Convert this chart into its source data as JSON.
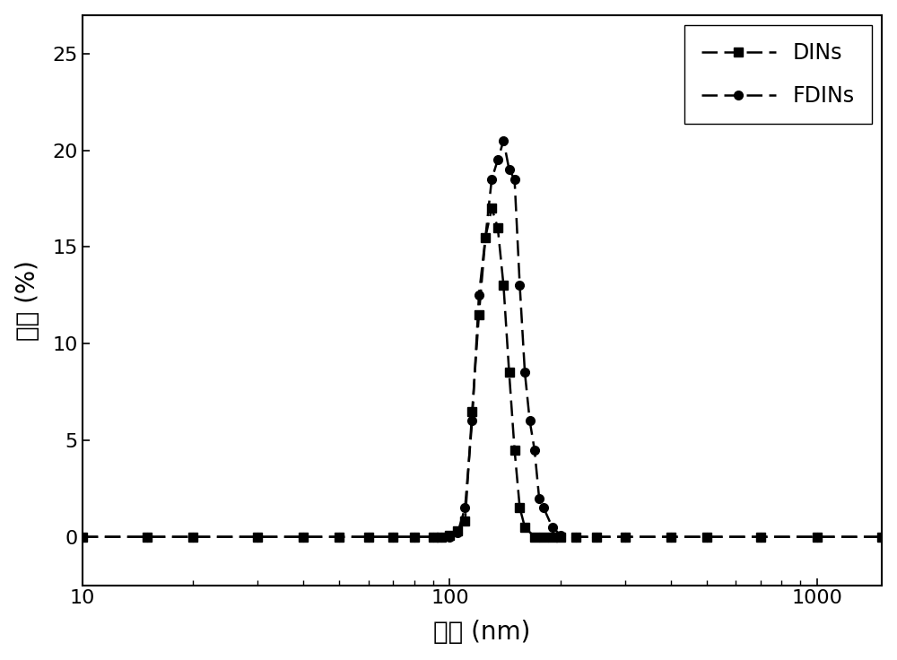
{
  "title": "",
  "xlabel": "粒径 (nm)",
  "ylabel": "强度 (%)",
  "xlim": [
    10,
    1500
  ],
  "ylim": [
    -2.5,
    27
  ],
  "yticks": [
    0,
    5,
    10,
    15,
    20,
    25
  ],
  "background_color": "#ffffff",
  "legend_labels": [
    "DINs",
    "FDINs"
  ],
  "DINs_x": [
    10,
    15,
    20,
    30,
    40,
    50,
    60,
    70,
    80,
    90,
    95,
    100,
    105,
    110,
    115,
    120,
    125,
    130,
    135,
    140,
    145,
    150,
    155,
    160,
    170,
    180,
    190,
    200,
    220,
    250,
    300,
    400,
    500,
    700,
    1000,
    1500
  ],
  "DINs_y": [
    0,
    0,
    0,
    0,
    0,
    0,
    0,
    0,
    0,
    0,
    0,
    0.1,
    0.3,
    0.8,
    6.5,
    11.5,
    15.5,
    17.0,
    16.0,
    13.0,
    8.5,
    4.5,
    1.5,
    0.5,
    0.0,
    0,
    0,
    0,
    0,
    0,
    0,
    0,
    0,
    0,
    0,
    0
  ],
  "FDINs_x": [
    10,
    15,
    20,
    30,
    40,
    50,
    60,
    70,
    80,
    90,
    95,
    100,
    105,
    110,
    115,
    120,
    125,
    130,
    135,
    140,
    145,
    150,
    155,
    160,
    165,
    170,
    175,
    180,
    190,
    200,
    220,
    250,
    300,
    400,
    500,
    700,
    1000,
    1500
  ],
  "FDINs_y": [
    0,
    0,
    0,
    0,
    0,
    0,
    0,
    0,
    0,
    0,
    0,
    0,
    0.2,
    1.5,
    6.0,
    12.5,
    15.5,
    18.5,
    19.5,
    20.5,
    19.0,
    18.5,
    13.0,
    8.5,
    6.0,
    4.5,
    2.0,
    1.5,
    0.5,
    0.1,
    0,
    0,
    0,
    0,
    0,
    0,
    0,
    0
  ],
  "line_color": "#000000",
  "marker_size": 7,
  "linewidth": 1.8,
  "fontsize_label": 20,
  "fontsize_tick": 16,
  "fontsize_legend": 17
}
